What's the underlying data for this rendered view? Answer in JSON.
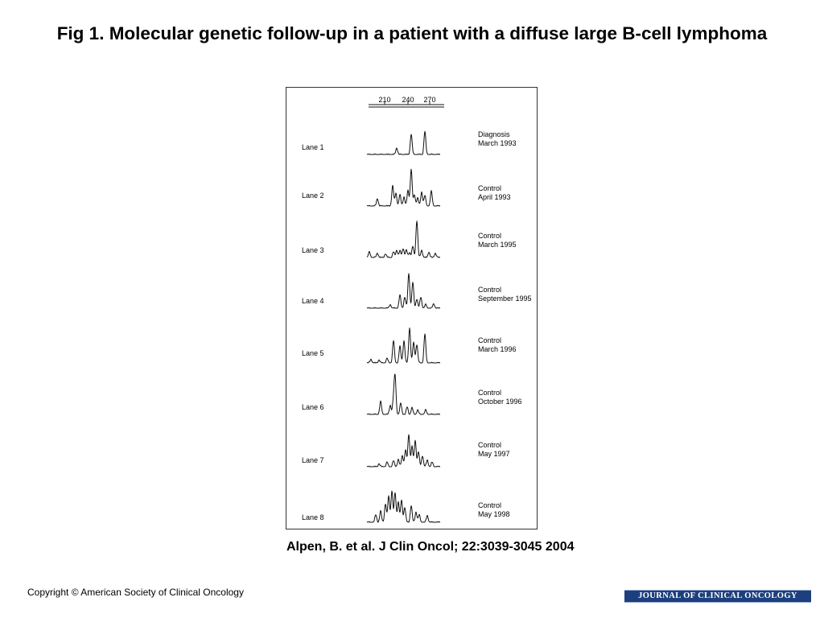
{
  "slide": {
    "title": "Fig 1. Molecular genetic follow-up in a patient with a diffuse large B-cell lymphoma",
    "citation": "Alpen, B. et al. J Clin Oncol; 22:3039-3045 2004",
    "copyright": "Copyright © American Society of Clinical Oncology",
    "journal_logo_text": "JOURNAL OF CLINICAL ONCOLOGY"
  },
  "figure": {
    "size_markers": [
      "210",
      "240",
      "270"
    ],
    "lanes": [
      {
        "label": "Lane 1",
        "note_line1": "Diagnosis",
        "note_line2": "March 1993",
        "peaks": [
          [
            -14,
            0.18
          ],
          [
            4,
            0.55
          ],
          [
            21,
            0.62
          ]
        ]
      },
      {
        "label": "Lane 2",
        "note_line1": "Control",
        "note_line2": "April 1993",
        "peaks": [
          [
            -38,
            0.2
          ],
          [
            -19,
            0.55
          ],
          [
            -15,
            0.35
          ],
          [
            -10,
            0.3
          ],
          [
            -5,
            0.25
          ],
          [
            0,
            0.42
          ],
          [
            4,
            1.0
          ],
          [
            8,
            0.3
          ],
          [
            12,
            0.22
          ],
          [
            17,
            0.38
          ],
          [
            21,
            0.28
          ],
          [
            29,
            0.4
          ]
        ]
      },
      {
        "label": "Lane 3",
        "note_line1": "Control",
        "note_line2": "March 1995",
        "peaks": [
          [
            -48,
            0.15
          ],
          [
            -38,
            0.12
          ],
          [
            -28,
            0.1
          ],
          [
            -18,
            0.15
          ],
          [
            -14,
            0.2
          ],
          [
            -10,
            0.18
          ],
          [
            -6,
            0.25
          ],
          [
            -2,
            0.2
          ],
          [
            2,
            0.14
          ],
          [
            6,
            0.3
          ],
          [
            11,
            1.0
          ],
          [
            17,
            0.2
          ],
          [
            26,
            0.15
          ],
          [
            34,
            0.12
          ]
        ]
      },
      {
        "label": "Lane 4",
        "note_line1": "Control",
        "note_line2": "September 1995",
        "peaks": [
          [
            -22,
            0.1
          ],
          [
            -10,
            0.35
          ],
          [
            -4,
            0.3
          ],
          [
            1,
            0.95
          ],
          [
            6,
            0.7
          ],
          [
            11,
            0.25
          ],
          [
            16,
            0.3
          ],
          [
            22,
            0.1
          ],
          [
            32,
            0.12
          ]
        ]
      },
      {
        "label": "Lane 5",
        "note_line1": "Control",
        "note_line2": "March 1996",
        "peaks": [
          [
            -46,
            0.1
          ],
          [
            -36,
            0.08
          ],
          [
            -26,
            0.12
          ],
          [
            -18,
            0.6
          ],
          [
            -10,
            0.45
          ],
          [
            -5,
            0.6
          ],
          [
            2,
            0.95
          ],
          [
            7,
            0.55
          ],
          [
            11,
            0.5
          ],
          [
            21,
            0.78
          ]
        ]
      },
      {
        "label": "Lane 6",
        "note_line1": "Control",
        "note_line2": "October 1996",
        "peaks": [
          [
            -34,
            0.35
          ],
          [
            -22,
            0.25
          ],
          [
            -18,
            0.38
          ],
          [
            -16,
            1.0
          ],
          [
            -9,
            0.3
          ],
          [
            -1,
            0.2
          ],
          [
            5,
            0.18
          ],
          [
            12,
            0.12
          ],
          [
            22,
            0.12
          ]
        ]
      },
      {
        "label": "Lane 7",
        "note_line1": "Control",
        "note_line2": "May 1997",
        "peaks": [
          [
            -36,
            0.08
          ],
          [
            -26,
            0.12
          ],
          [
            -18,
            0.16
          ],
          [
            -12,
            0.2
          ],
          [
            -7,
            0.3
          ],
          [
            -3,
            0.45
          ],
          [
            1,
            0.88
          ],
          [
            5,
            0.55
          ],
          [
            9,
            0.72
          ],
          [
            13,
            0.4
          ],
          [
            18,
            0.3
          ],
          [
            24,
            0.18
          ],
          [
            30,
            0.12
          ]
        ]
      },
      {
        "label": "Lane 8",
        "note_line1": "Control",
        "note_line2": "May 1998",
        "peaks": [
          [
            -40,
            0.2
          ],
          [
            -34,
            0.3
          ],
          [
            -28,
            0.5
          ],
          [
            -24,
            0.7
          ],
          [
            -20,
            0.85
          ],
          [
            -16,
            0.8
          ],
          [
            -12,
            0.55
          ],
          [
            -8,
            0.6
          ],
          [
            -4,
            0.4
          ],
          [
            4,
            0.45
          ],
          [
            10,
            0.28
          ],
          [
            14,
            0.2
          ],
          [
            24,
            0.18
          ]
        ]
      }
    ],
    "trace_color": "#111111"
  }
}
